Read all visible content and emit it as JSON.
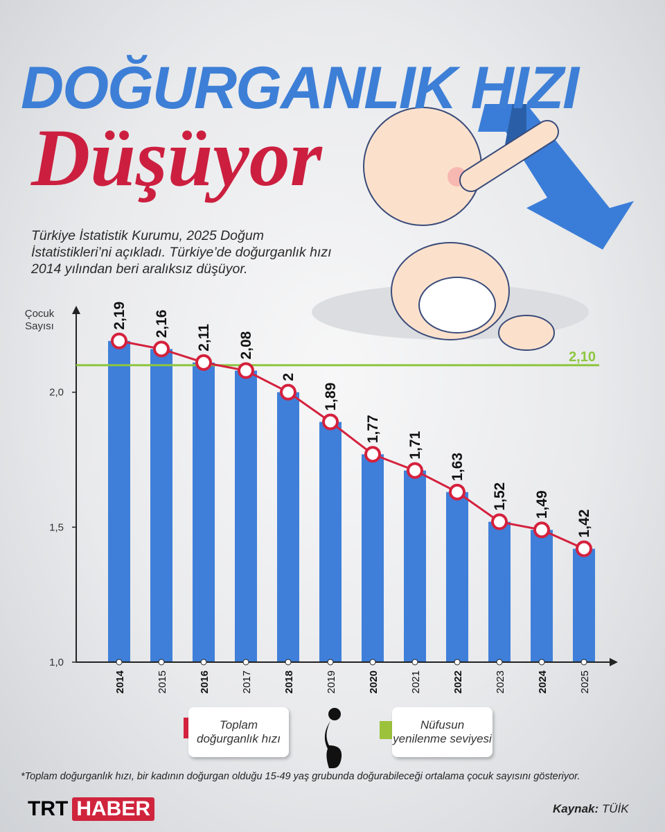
{
  "chart_data": {
    "type": "bar",
    "title": "DOĞURGANLIK HIZI",
    "subtitle": "Düşüyor",
    "description": "Türkiye İstatistik Kurumu, 2025 Doğum İstatistikleri’ni açıkladı. Türkiye’de doğurganlık hızı 2014 yılından beri aralıksız düşüyor.",
    "y_label": "Çocuk Sayısı",
    "categories": [
      "2014",
      "2015",
      "2016",
      "2017",
      "2018",
      "2019",
      "2020",
      "2021",
      "2022",
      "2023",
      "2024",
      "2025"
    ],
    "bar_color": "#3f7fd9",
    "series": [
      {
        "name": "Toplam doğurganlık hızı",
        "color": "#d4213d",
        "values": [
          2.19,
          2.16,
          2.11,
          2.08,
          2,
          1.89,
          1.77,
          1.71,
          1.63,
          1.52,
          1.49,
          1.42
        ],
        "value_labels": [
          "2,19",
          "2,16",
          "2,11",
          "2,08",
          "2",
          "1,89",
          "1,77",
          "1,71",
          "1,63",
          "1,52",
          "1,49",
          "1,42"
        ]
      }
    ],
    "reference_line": {
      "name": "Nüfusun yenilenme seviyesi",
      "value": 2.1,
      "label": "2,10",
      "color": "#8dc63f"
    },
    "ylim": [
      1.0,
      2.31
    ],
    "yticks": [
      {
        "value": 1.0,
        "label": "1,0"
      },
      {
        "value": 1.5,
        "label": "1,5"
      },
      {
        "value": 2.0,
        "label": "2,0"
      }
    ],
    "grid": false
  },
  "footnote": "*Toplam doğurganlık hızı, bir kadının doğurgan olduğu 15-49 yaş grubunda doğurabileceği ortalama çocuk sayısını gösteriyor.",
  "brand": {
    "left": "TRT",
    "right": "HABER"
  },
  "source": {
    "label": "Kaynak:",
    "value": "TÜİK"
  }
}
